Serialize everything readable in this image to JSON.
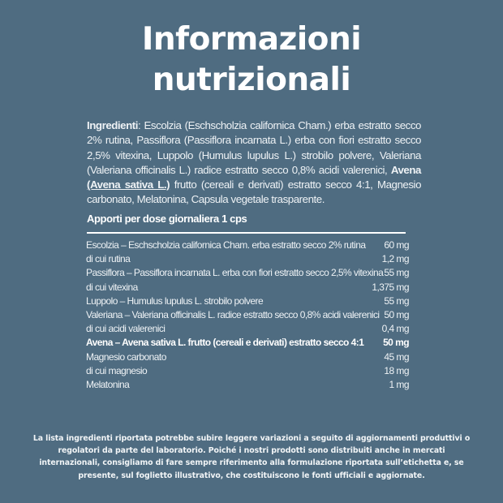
{
  "title": {
    "line1": "Informazioni",
    "line2": "nutrizionali"
  },
  "ingredients": {
    "label": "Ingredienti",
    "text1": ": Escolzia (Eschscholzia californica Cham.) erba estratto secco 2% rutina, Passiflora (Passiflora incarnata L.) erba con fiori estratto secco 2,5% vitexina, Luppolo (Humulus lupulus L.) strobilo polvere, Valeriana (Valeriana officinalis L.) radice estratto secco 0,8% acidi valerenici, ",
    "bold_name": "Avena",
    "bold_underlined": "(Avena sativa L.)",
    "text2": " frutto (cereali e derivati) estratto secco 4:1, Magnesio carbonato, Melatonina, Capsula vegetale trasparente."
  },
  "apporti_heading": "Apporti per dose giornaliera 1 cps",
  "rows": [
    {
      "name": "Escolzia – Eschscholzia californica Cham. erba estratto secco 2% rutina",
      "value": "60 mg"
    },
    {
      "name": "di cui rutina",
      "value": "1,2 mg"
    },
    {
      "name": "Passiflora – Passiflora incarnata L. erba con fiori estratto secco 2,5% vitexina",
      "value": "55 mg"
    },
    {
      "name": "di cui vitexina",
      "value": "1,375 mg"
    },
    {
      "name": "Luppolo – Humulus lupulus L. strobilo polvere",
      "value": "55 mg"
    },
    {
      "name": "Valeriana – Valeriana officinalis L. radice estratto secco 0,8% acidi valerenici",
      "value": "50 mg"
    },
    {
      "name": "di cui acidi valerenici",
      "value": "0,4 mg"
    },
    {
      "name": "Avena – Avena sativa L. frutto (cereali e derivati) estratto secco 4:1",
      "value": "50 mg"
    },
    {
      "name": "Magnesio carbonato",
      "value": "45 mg"
    },
    {
      "name": "di cui magnesio",
      "value": "18 mg"
    },
    {
      "name": "Melatonina",
      "value": "1 mg"
    }
  ],
  "footer": "La lista ingredienti riportata potrebbe subire leggere variazioni a seguito di aggiornamenti produttivi o regolatori da parte del laboratorio. Poiché i nostri prodotti sono distribuiti anche in mercati internazionali, consigliamo di fare sempre riferimento alla formulazione riportata sull’etichetta e, se presente, sul foglietto illustrativo, che costituiscono le fonti ufficiali e aggiornate.",
  "colors": {
    "background": "#4f6c81",
    "text": "#ffffff"
  }
}
